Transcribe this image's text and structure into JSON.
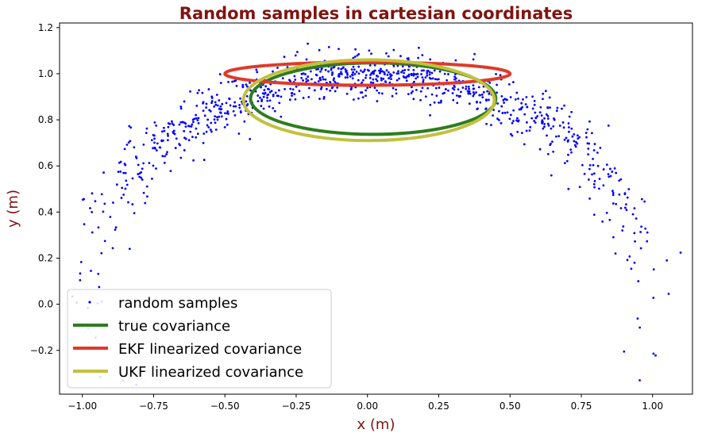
{
  "chart_data": {
    "type": "scatter",
    "title": "Random samples in cartesian coordinates",
    "xlabel": "x (m)",
    "ylabel": "y (m)",
    "xlim": [
      -1.08,
      1.14
    ],
    "ylim": [
      -0.39,
      1.22
    ],
    "xticks": [
      -1.0,
      -0.75,
      -0.5,
      -0.25,
      0.0,
      0.25,
      0.5,
      0.75,
      1.0
    ],
    "xtick_labels": [
      "−1.00",
      "−0.75",
      "−0.50",
      "−0.25",
      "0.00",
      "0.25",
      "0.50",
      "0.75",
      "1.00"
    ],
    "yticks": [
      -0.2,
      0.0,
      0.2,
      0.4,
      0.6,
      0.8,
      1.0,
      1.2
    ],
    "ytick_labels": [
      "−0.2",
      "0.0",
      "0.2",
      "0.4",
      "0.6",
      "0.8",
      "1.0",
      "1.2"
    ],
    "grid": false,
    "legend_position": "lower-left",
    "samples": {
      "name": "random samples",
      "color": "#0000ff",
      "count": 1000,
      "range_mean": 1.0,
      "range_std": 0.05,
      "bearing_mean_deg": 90,
      "bearing_std_deg": 35,
      "outliers": [
        {
          "x": 0.955,
          "y": -0.33
        },
        {
          "x": 0.9,
          "y": -0.205
        },
        {
          "x": 1.05,
          "y": 0.19
        },
        {
          "x": -0.97,
          "y": 0.145
        },
        {
          "x": 0.87,
          "y": 0.22
        },
        {
          "x": 0.95,
          "y": 0.1
        }
      ]
    },
    "series": [
      {
        "name": "true covariance",
        "color": "#2e7d1f",
        "cx": 0.02,
        "cy": 0.892,
        "rx": 0.43,
        "ry": 0.155
      },
      {
        "name": "EKF linearized covariance",
        "color": "#e03a2a",
        "cx": 0.0,
        "cy": 1.0,
        "rx": 0.5,
        "ry": 0.05
      },
      {
        "name": "UKF linearized covariance",
        "color": "#c2c13e",
        "cx": 0.005,
        "cy": 0.885,
        "rx": 0.44,
        "ry": 0.175
      }
    ]
  }
}
